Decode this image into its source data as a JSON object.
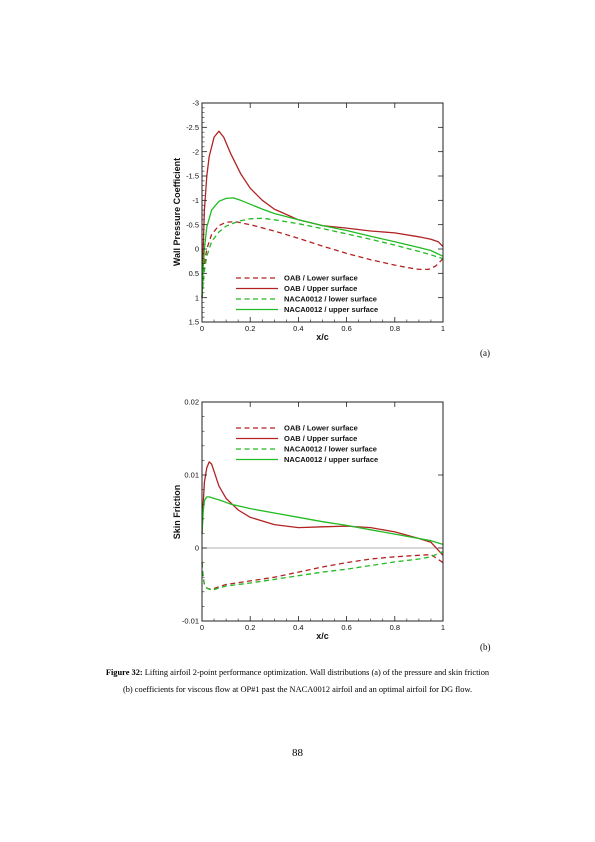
{
  "chart_data": [
    {
      "type": "line",
      "id": "pressure",
      "xlabel": "x/c",
      "ylabel": "Wall Pressure Coefficient",
      "xlim": [
        0,
        1
      ],
      "ylim": [
        -3,
        1.5
      ],
      "y_inverted": true,
      "xticks": [
        0,
        0.2,
        0.4,
        0.6,
        0.8,
        1
      ],
      "xtick_labels": [
        "0",
        "0.2",
        "0.4",
        "0.6",
        "0.8",
        "1"
      ],
      "yticks": [
        -3,
        -2.5,
        -2,
        -1.5,
        -1,
        -0.5,
        0,
        0.5,
        1,
        1.5
      ],
      "ytick_labels": [
        "-3",
        "-2.5",
        "-2",
        "-1.5",
        "-1",
        "-0.5",
        "0",
        "0.5",
        "1",
        "1.5"
      ],
      "legend_position": "bottom-center",
      "series": [
        {
          "name": "OAB / Lower surface",
          "color": "#b22222",
          "dash": true,
          "x": [
            0,
            0.005,
            0.01,
            0.02,
            0.04,
            0.07,
            0.1,
            0.14,
            0.2,
            0.3,
            0.4,
            0.5,
            0.6,
            0.7,
            0.8,
            0.85,
            0.9,
            0.94,
            0.97,
            1.0
          ],
          "y": [
            1.0,
            0.6,
            0.3,
            0.0,
            -0.3,
            -0.48,
            -0.55,
            -0.56,
            -0.5,
            -0.37,
            -0.22,
            -0.06,
            0.09,
            0.22,
            0.33,
            0.38,
            0.42,
            0.42,
            0.35,
            0.2
          ]
        },
        {
          "name": "OAB / Upper surface",
          "color": "#b22222",
          "dash": false,
          "x": [
            0,
            0.005,
            0.01,
            0.02,
            0.03,
            0.05,
            0.07,
            0.09,
            0.12,
            0.16,
            0.2,
            0.25,
            0.3,
            0.4,
            0.5,
            0.6,
            0.7,
            0.8,
            0.9,
            0.95,
            0.98,
            1.0
          ],
          "y": [
            1.0,
            0.0,
            -0.8,
            -1.5,
            -1.9,
            -2.3,
            -2.42,
            -2.3,
            -1.95,
            -1.55,
            -1.25,
            -1.0,
            -0.82,
            -0.6,
            -0.48,
            -0.43,
            -0.37,
            -0.33,
            -0.25,
            -0.2,
            -0.15,
            -0.05
          ]
        },
        {
          "name": "NACA0012 / lower surface",
          "color": "#22bb22",
          "dash": true,
          "x": [
            0,
            0.005,
            0.01,
            0.02,
            0.04,
            0.07,
            0.1,
            0.15,
            0.2,
            0.25,
            0.3,
            0.4,
            0.5,
            0.6,
            0.7,
            0.8,
            0.9,
            0.95,
            1.0
          ],
          "y": [
            1.0,
            0.7,
            0.45,
            0.15,
            -0.15,
            -0.35,
            -0.47,
            -0.57,
            -0.62,
            -0.63,
            -0.6,
            -0.52,
            -0.42,
            -0.31,
            -0.2,
            -0.08,
            0.05,
            0.12,
            0.2
          ]
        },
        {
          "name": "NACA0012 / upper surface",
          "color": "#22bb22",
          "dash": false,
          "x": [
            0,
            0.005,
            0.01,
            0.02,
            0.04,
            0.07,
            0.1,
            0.13,
            0.16,
            0.2,
            0.25,
            0.3,
            0.4,
            0.5,
            0.6,
            0.7,
            0.8,
            0.9,
            0.95,
            1.0
          ],
          "y": [
            1.0,
            0.4,
            0.0,
            -0.45,
            -0.8,
            -0.98,
            -1.04,
            -1.05,
            -1.0,
            -0.92,
            -0.82,
            -0.73,
            -0.6,
            -0.48,
            -0.38,
            -0.26,
            -0.15,
            -0.03,
            0.03,
            0.15
          ]
        }
      ]
    },
    {
      "type": "line",
      "id": "skin_friction",
      "xlabel": "x/c",
      "ylabel": "Skin Friction",
      "xlim": [
        0,
        1
      ],
      "ylim": [
        -0.01,
        0.02
      ],
      "y_inverted": false,
      "xticks": [
        0,
        0.2,
        0.4,
        0.6,
        0.8,
        1
      ],
      "xtick_labels": [
        "0",
        "0.2",
        "0.4",
        "0.6",
        "0.8",
        "1"
      ],
      "yticks": [
        -0.01,
        0,
        0.01,
        0.02
      ],
      "ytick_labels": [
        "-0.01",
        "0",
        "0.01",
        "0.02"
      ],
      "zero_line": true,
      "legend_position": "top-right",
      "series": [
        {
          "name": "OAB / Lower surface",
          "color": "#b22222",
          "dash": true,
          "x": [
            0,
            0.005,
            0.01,
            0.02,
            0.04,
            0.07,
            0.1,
            0.2,
            0.3,
            0.4,
            0.5,
            0.6,
            0.7,
            0.8,
            0.9,
            0.95,
            1.0
          ],
          "y": [
            -0.002,
            -0.004,
            -0.005,
            -0.0055,
            -0.0057,
            -0.0053,
            -0.005,
            -0.0045,
            -0.004,
            -0.0033,
            -0.0026,
            -0.002,
            -0.0015,
            -0.0012,
            -0.001,
            -0.0009,
            -0.002
          ]
        },
        {
          "name": "OAB / Upper surface",
          "color": "#b22222",
          "dash": false,
          "x": [
            0,
            0.005,
            0.01,
            0.02,
            0.03,
            0.04,
            0.05,
            0.07,
            0.1,
            0.15,
            0.2,
            0.3,
            0.4,
            0.5,
            0.6,
            0.7,
            0.8,
            0.9,
            0.95,
            1.0
          ],
          "y": [
            0.002,
            0.006,
            0.009,
            0.011,
            0.0118,
            0.0115,
            0.0105,
            0.0085,
            0.0068,
            0.0052,
            0.0042,
            0.0032,
            0.0028,
            0.0029,
            0.003,
            0.0028,
            0.0022,
            0.0013,
            0.0008,
            -0.001
          ]
        },
        {
          "name": "NACA0012 / lower surface",
          "color": "#22bb22",
          "dash": true,
          "x": [
            0,
            0.005,
            0.01,
            0.02,
            0.04,
            0.07,
            0.1,
            0.2,
            0.3,
            0.4,
            0.5,
            0.6,
            0.7,
            0.8,
            0.9,
            0.95,
            1.0
          ],
          "y": [
            -0.002,
            -0.004,
            -0.005,
            -0.0055,
            -0.0058,
            -0.0055,
            -0.0052,
            -0.0048,
            -0.0043,
            -0.0038,
            -0.0033,
            -0.0029,
            -0.0024,
            -0.0019,
            -0.0015,
            -0.0012,
            -0.0005
          ]
        },
        {
          "name": "NACA0012 / upper surface",
          "color": "#22bb22",
          "dash": false,
          "x": [
            0,
            0.005,
            0.01,
            0.02,
            0.03,
            0.05,
            0.08,
            0.12,
            0.16,
            0.2,
            0.3,
            0.4,
            0.5,
            0.6,
            0.7,
            0.8,
            0.9,
            0.95,
            1.0
          ],
          "y": [
            0.002,
            0.005,
            0.0065,
            0.007,
            0.007,
            0.0068,
            0.0065,
            0.006,
            0.0057,
            0.0054,
            0.0048,
            0.0042,
            0.0036,
            0.0031,
            0.0025,
            0.0019,
            0.0013,
            0.001,
            0.0005
          ]
        }
      ]
    }
  ],
  "figure": {
    "label_a": "(a)",
    "label_b": "(b)",
    "caption_label": "Figure 32:",
    "caption_text": " Lifting airfoil 2-point performance optimization. Wall distributions (a) of the pressure and skin friction (b) coefficients for viscous flow at OP#1 past the NACA0012 airfoil and an optimal airfoil for DG flow."
  },
  "page_number": "88"
}
